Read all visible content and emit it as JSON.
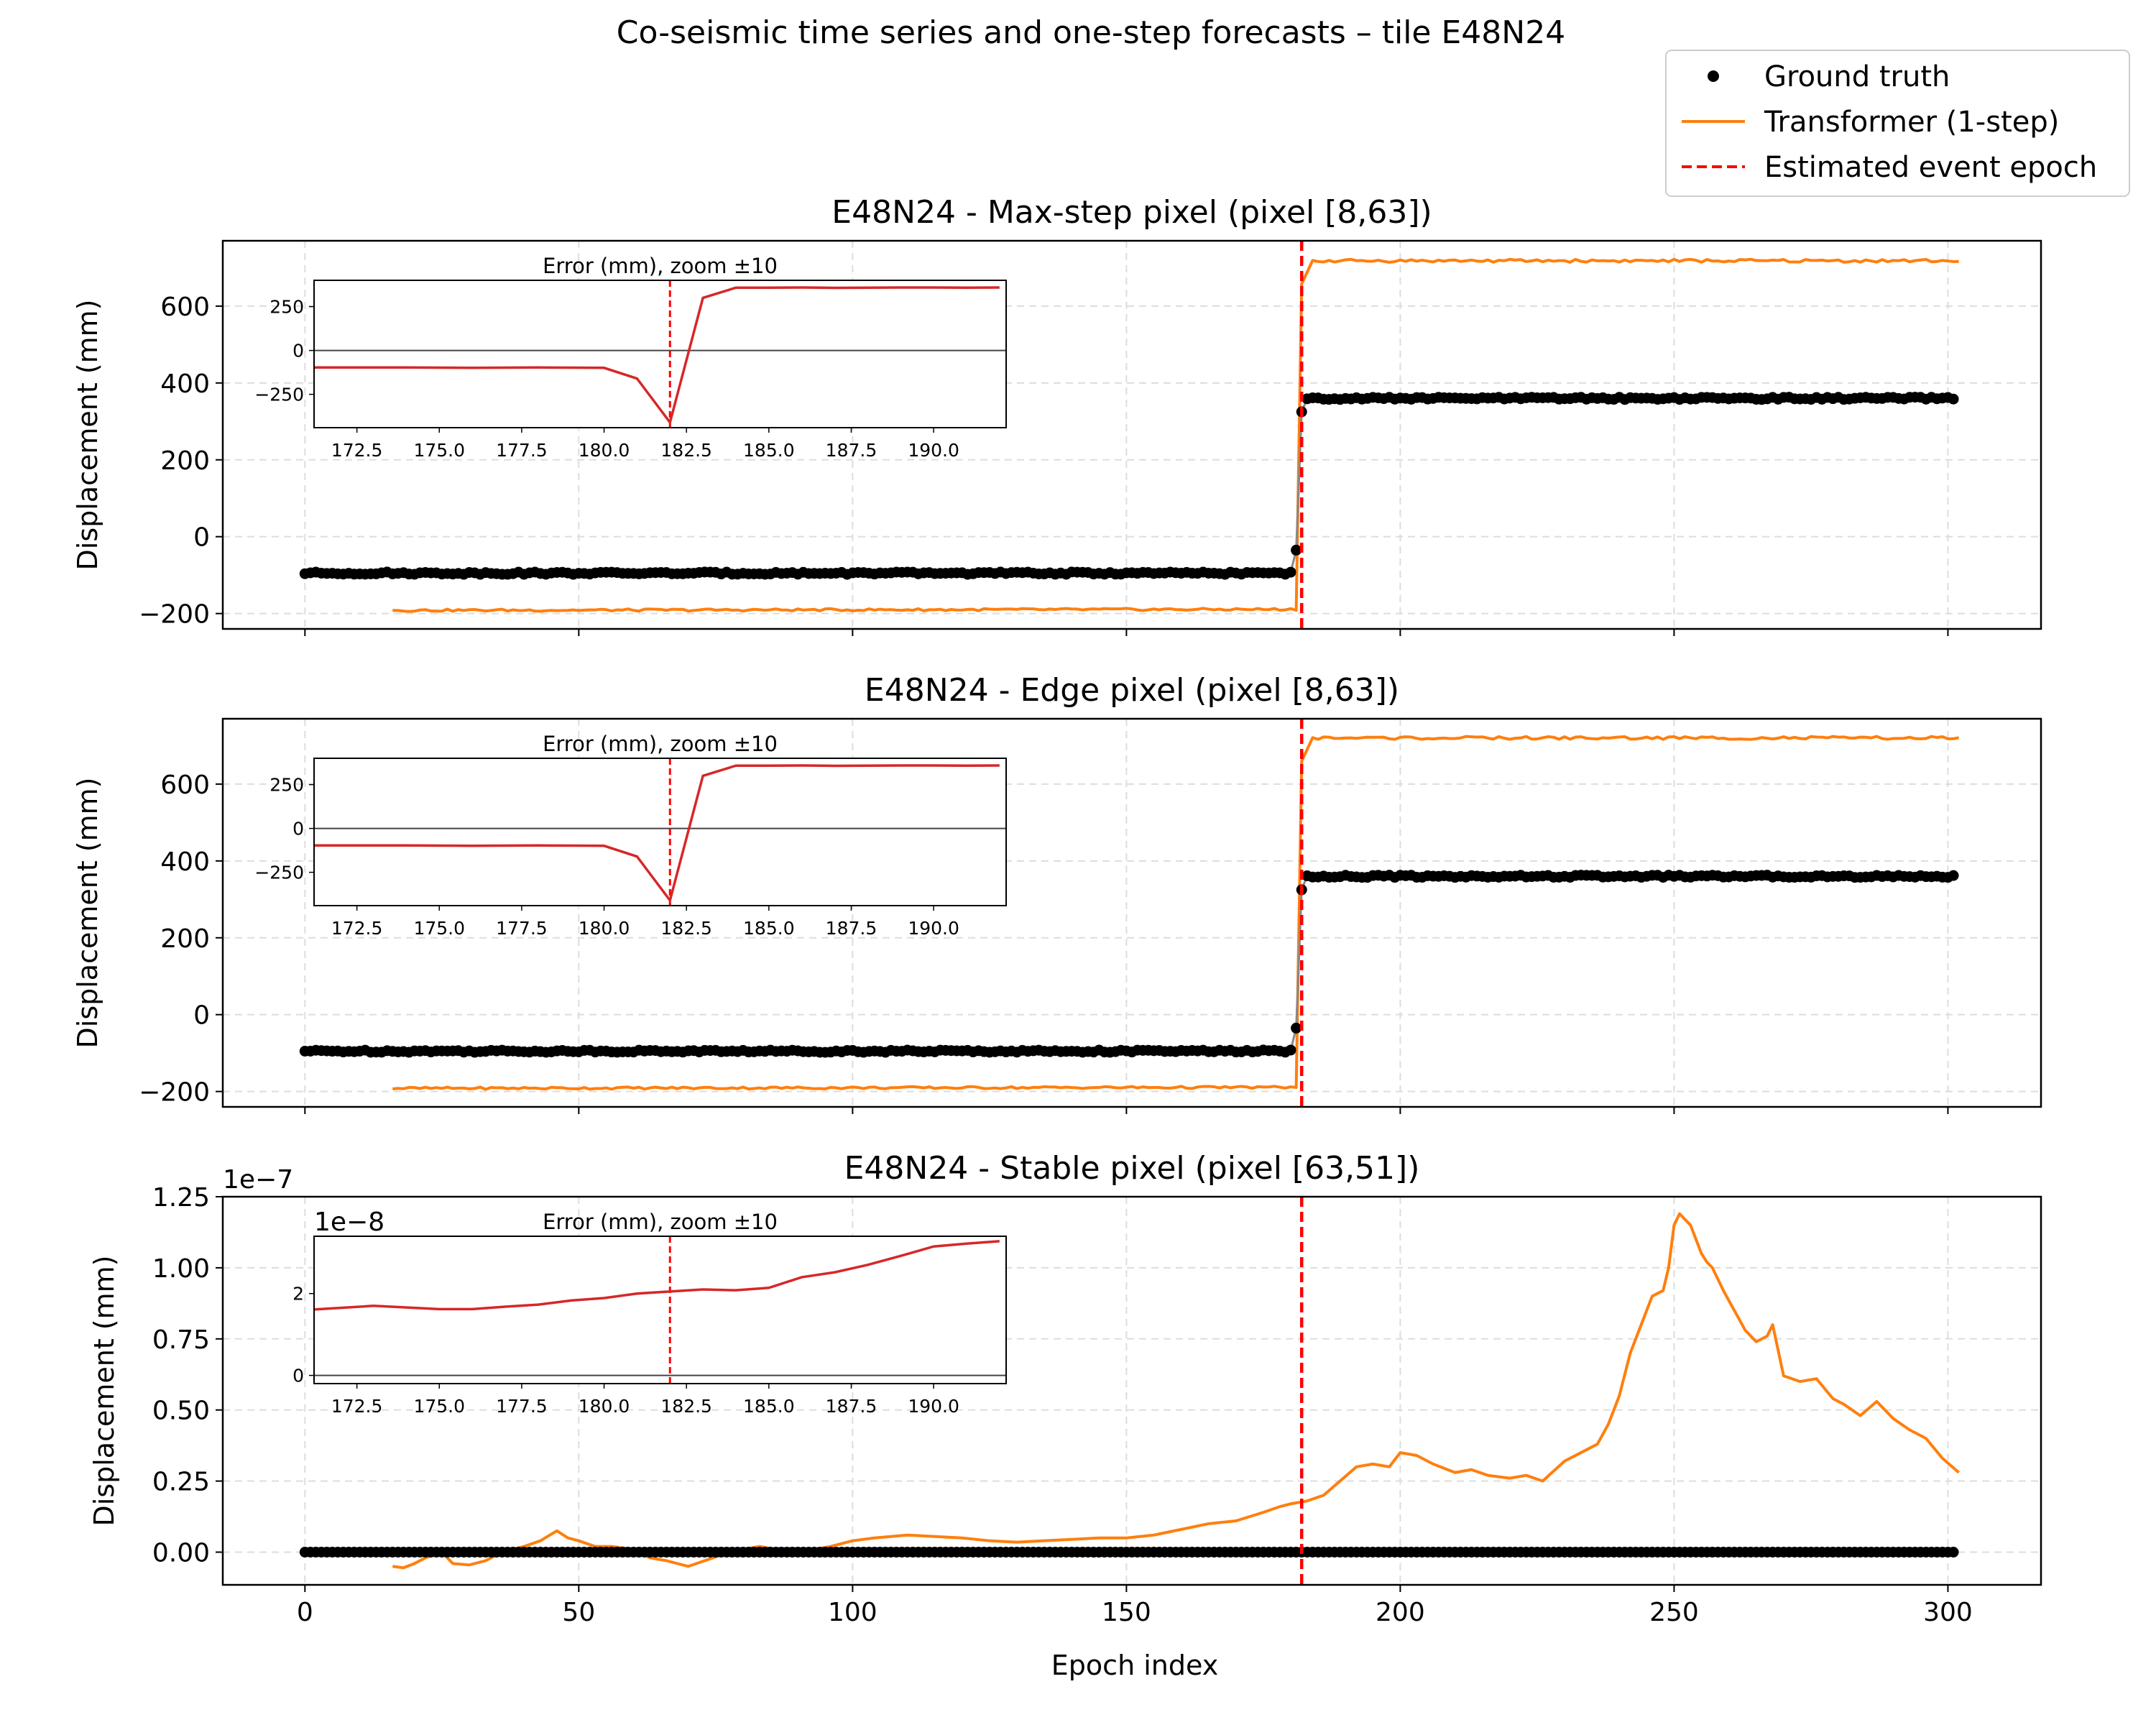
{
  "suptitle": "Co-seismic time series and one-step forecasts – tile E48N24",
  "legend": {
    "placement": "top-right",
    "items": [
      {
        "label": "Ground truth",
        "kind": "marker",
        "color": "#000000"
      },
      {
        "label": "Transformer (1-step)",
        "kind": "line",
        "color": "#ff7f0e"
      },
      {
        "label": "Estimated event epoch",
        "kind": "dashed",
        "color": "#ff0000"
      }
    ]
  },
  "colors": {
    "truth": "#000000",
    "forecast": "#ff7f0e",
    "event": "#ff0000",
    "inset_error": "#d62728",
    "connector": "#888888"
  },
  "xlabel": "Epoch index",
  "event_epoch": 182,
  "chart_data": [
    {
      "type": "line",
      "title": "E48N24 - Max-step pixel (pixel [8,63])",
      "ylabel": "Displacement (mm)",
      "xlim": [
        -15,
        317
      ],
      "ylim": [
        -240,
        770
      ],
      "yticks": [
        -200,
        0,
        200,
        400,
        600
      ],
      "ytick_labels": [
        "−200",
        "0",
        "200",
        "400",
        "600"
      ],
      "xticks": [
        0,
        50,
        100,
        150,
        200,
        250,
        300
      ],
      "xtick_labels": [
        "0",
        "50",
        "100",
        "150",
        "200",
        "250",
        "300"
      ],
      "show_xtick_labels": false,
      "grid": true,
      "sci_label": "",
      "truth": {
        "name": "Ground truth",
        "x_start": 0,
        "x_end": 301,
        "pre_level": -95,
        "post_level": 360,
        "step_epochs": [
          181,
          182
        ],
        "step_values": [
          -35,
          325
        ]
      },
      "forecast": {
        "name": "Transformer (1-step)",
        "x_start": 16,
        "x_end": 302,
        "pre_level": -192,
        "post_level": 718
      },
      "inset": {
        "title": "Error (mm), zoom ±10",
        "xlim": [
          171.2,
          192.2
        ],
        "ylim": [
          -440,
          400
        ],
        "xticks": [
          172.5,
          175.0,
          177.5,
          180.0,
          182.5,
          185.0,
          187.5,
          190.0
        ],
        "xtick_labels": [
          "172.5",
          "175.0",
          "177.5",
          "180.0",
          "182.5",
          "185.0",
          "187.5",
          "190.0"
        ],
        "yticks": [
          -250,
          0,
          250
        ],
        "ytick_labels": [
          "−250",
          "0",
          "250"
        ],
        "sci_label": "",
        "x": [
          171,
          172,
          173,
          174,
          175,
          176,
          177,
          178,
          179,
          180,
          181,
          182,
          183,
          184,
          185,
          186,
          187,
          188,
          189,
          190,
          191,
          192
        ],
        "y": [
          -97,
          -97,
          -97,
          -97,
          -98,
          -99,
          -98,
          -97,
          -98,
          -99,
          -160,
          -410,
          300,
          358,
          358,
          359,
          357,
          358,
          359,
          359,
          358,
          359
        ]
      }
    },
    {
      "type": "line",
      "title": "E48N24 - Edge pixel (pixel [8,63])",
      "ylabel": "Displacement (mm)",
      "xlim": [
        -15,
        317
      ],
      "ylim": [
        -240,
        770
      ],
      "yticks": [
        -200,
        0,
        200,
        400,
        600
      ],
      "ytick_labels": [
        "−200",
        "0",
        "200",
        "400",
        "600"
      ],
      "xticks": [
        0,
        50,
        100,
        150,
        200,
        250,
        300
      ],
      "xtick_labels": [
        "0",
        "50",
        "100",
        "150",
        "200",
        "250",
        "300"
      ],
      "show_xtick_labels": false,
      "grid": true,
      "sci_label": "",
      "truth": {
        "name": "Ground truth",
        "x_start": 0,
        "x_end": 301,
        "pre_level": -95,
        "post_level": 360,
        "step_epochs": [
          181,
          182
        ],
        "step_values": [
          -35,
          325
        ]
      },
      "forecast": {
        "name": "Transformer (1-step)",
        "x_start": 16,
        "x_end": 302,
        "pre_level": -192,
        "post_level": 720
      },
      "inset": {
        "title": "Error (mm), zoom ±10",
        "xlim": [
          171.2,
          192.2
        ],
        "ylim": [
          -440,
          400
        ],
        "xticks": [
          172.5,
          175.0,
          177.5,
          180.0,
          182.5,
          185.0,
          187.5,
          190.0
        ],
        "xtick_labels": [
          "172.5",
          "175.0",
          "177.5",
          "180.0",
          "182.5",
          "185.0",
          "187.5",
          "190.0"
        ],
        "yticks": [
          -250,
          0,
          250
        ],
        "ytick_labels": [
          "−250",
          "0",
          "250"
        ],
        "sci_label": "",
        "x": [
          171,
          172,
          173,
          174,
          175,
          176,
          177,
          178,
          179,
          180,
          181,
          182,
          183,
          184,
          185,
          186,
          187,
          188,
          189,
          190,
          191,
          192
        ],
        "y": [
          -97,
          -97,
          -97,
          -97,
          -98,
          -99,
          -98,
          -97,
          -98,
          -99,
          -160,
          -410,
          300,
          358,
          358,
          359,
          357,
          358,
          359,
          359,
          358,
          359
        ]
      }
    },
    {
      "type": "line",
      "title": "E48N24 - Stable pixel (pixel [63,51])",
      "ylabel": "Displacement (mm)",
      "xlim": [
        -15,
        317
      ],
      "ylim": [
        -0.115,
        1.25
      ],
      "yticks": [
        0,
        0.25,
        0.5,
        0.75,
        1.0,
        1.25
      ],
      "ytick_labels": [
        "0.00",
        "0.25",
        "0.50",
        "0.75",
        "1.00",
        "1.25"
      ],
      "xticks": [
        0,
        50,
        100,
        150,
        200,
        250,
        300
      ],
      "xtick_labels": [
        "0",
        "50",
        "100",
        "150",
        "200",
        "250",
        "300"
      ],
      "show_xtick_labels": true,
      "grid": true,
      "sci_label": "1e−7",
      "truth": {
        "name": "Ground truth",
        "x_start": 0,
        "x_end": 301,
        "pre_level": 0,
        "post_level": 0,
        "step_epochs": [],
        "step_values": []
      },
      "forecast": {
        "name": "Transformer (1-step)",
        "x": [
          16,
          18,
          20,
          22,
          25,
          27,
          30,
          33,
          36,
          40,
          43,
          46,
          48,
          50,
          53,
          56,
          60,
          63,
          66,
          70,
          73,
          76,
          80,
          83,
          86,
          90,
          93,
          96,
          100,
          104,
          110,
          115,
          120,
          125,
          130,
          135,
          140,
          145,
          150,
          155,
          160,
          165,
          170,
          175,
          178,
          180,
          183,
          186,
          189,
          192,
          195,
          198,
          200,
          203,
          206,
          210,
          213,
          216,
          220,
          223,
          226,
          230,
          233,
          236,
          238,
          240,
          242,
          244,
          246,
          248,
          249,
          250,
          251,
          253,
          255,
          256,
          257,
          259,
          261,
          263,
          265,
          267,
          268,
          270,
          273,
          276,
          279,
          281,
          284,
          287,
          290,
          293,
          296,
          299,
          302
        ],
        "y": [
          -0.05,
          -0.055,
          -0.04,
          -0.02,
          0.0,
          -0.04,
          -0.045,
          -0.03,
          0.0,
          0.02,
          0.04,
          0.075,
          0.05,
          0.04,
          0.02,
          0.02,
          0.01,
          -0.02,
          -0.03,
          -0.05,
          -0.03,
          -0.01,
          0.01,
          0.02,
          0.01,
          0.005,
          0.01,
          0.02,
          0.04,
          0.05,
          0.06,
          0.055,
          0.05,
          0.04,
          0.035,
          0.04,
          0.045,
          0.05,
          0.05,
          0.06,
          0.08,
          0.1,
          0.11,
          0.14,
          0.16,
          0.17,
          0.18,
          0.2,
          0.25,
          0.3,
          0.31,
          0.3,
          0.35,
          0.34,
          0.31,
          0.28,
          0.29,
          0.27,
          0.26,
          0.27,
          0.25,
          0.32,
          0.35,
          0.38,
          0.45,
          0.55,
          0.7,
          0.8,
          0.9,
          0.92,
          1.0,
          1.15,
          1.19,
          1.15,
          1.05,
          1.02,
          1.0,
          0.92,
          0.85,
          0.78,
          0.74,
          0.76,
          0.8,
          0.62,
          0.6,
          0.61,
          0.54,
          0.52,
          0.48,
          0.53,
          0.47,
          0.43,
          0.4,
          0.33,
          0.28
        ]
      },
      "inset": {
        "title": "Error (mm), zoom ±10",
        "xlim": [
          171.2,
          192.2
        ],
        "ylim": [
          -0.2,
          3.4
        ],
        "xticks": [
          172.5,
          175.0,
          177.5,
          180.0,
          182.5,
          185.0,
          187.5,
          190.0
        ],
        "xtick_labels": [
          "172.5",
          "175.0",
          "177.5",
          "180.0",
          "182.5",
          "185.0",
          "187.5",
          "190.0"
        ],
        "yticks": [
          0,
          2
        ],
        "ytick_labels": [
          "0",
          "2"
        ],
        "sci_label": "1e−8",
        "x": [
          171,
          173,
          175,
          176,
          177,
          178,
          179,
          180,
          181,
          182,
          183,
          184,
          185,
          186,
          187,
          188,
          189,
          190,
          191,
          192
        ],
        "y": [
          1.6,
          1.7,
          1.62,
          1.62,
          1.68,
          1.73,
          1.83,
          1.89,
          2.0,
          2.05,
          2.1,
          2.08,
          2.14,
          2.4,
          2.52,
          2.7,
          2.92,
          3.15,
          3.22,
          3.28
        ]
      }
    }
  ]
}
